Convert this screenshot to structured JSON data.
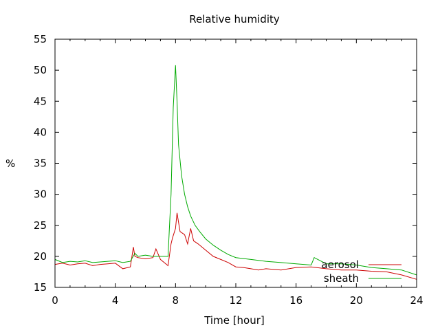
{
  "chart_data": {
    "type": "line",
    "title": "Relative humidity",
    "xlabel": "Time [hour]",
    "ylabel": "%",
    "xlim": [
      0,
      24
    ],
    "ylim": [
      15,
      55
    ],
    "xticks": [
      0,
      4,
      8,
      12,
      16,
      20,
      24
    ],
    "yticks": [
      15,
      20,
      25,
      30,
      35,
      40,
      45,
      50,
      55
    ],
    "grid": false,
    "legend_position": "bottom-right",
    "series": [
      {
        "name": "aerosol",
        "color": "#cc0000",
        "x": [
          0,
          0.5,
          1,
          1.5,
          2,
          2.5,
          3,
          3.5,
          4,
          4.5,
          5,
          5.2,
          5.3,
          5.5,
          6,
          6.5,
          6.7,
          7,
          7.5,
          7.7,
          7.8,
          8,
          8.1,
          8.3,
          8.6,
          8.8,
          9,
          9.2,
          9.5,
          10,
          10.5,
          11,
          11.5,
          12,
          12.5,
          13,
          13.5,
          14,
          15,
          16,
          17,
          18,
          19,
          20,
          21,
          22,
          23,
          24
        ],
        "y": [
          18.7,
          18.9,
          18.6,
          18.8,
          18.9,
          18.5,
          18.7,
          18.8,
          18.9,
          18.0,
          18.3,
          21.5,
          20.0,
          19.8,
          19.6,
          19.8,
          21.2,
          19.5,
          18.5,
          22.0,
          23.0,
          24.5,
          27.0,
          24.0,
          23.5,
          22.0,
          24.5,
          22.5,
          22.0,
          21.0,
          20.0,
          19.5,
          19.0,
          18.3,
          18.2,
          18.0,
          17.8,
          18.0,
          17.8,
          18.2,
          18.3,
          18.0,
          17.8,
          17.8,
          17.6,
          17.5,
          17.0,
          16.3
        ]
      },
      {
        "name": "sheath",
        "color": "#00aa00",
        "x": [
          0,
          0.5,
          1,
          1.5,
          2,
          2.5,
          3,
          3.5,
          4,
          4.5,
          5,
          5.3,
          5.5,
          6,
          6.5,
          7,
          7.5,
          7.7,
          7.85,
          8.0,
          8.1,
          8.2,
          8.4,
          8.6,
          8.8,
          9.0,
          9.3,
          9.6,
          10,
          10.5,
          11,
          11.5,
          12,
          13,
          14,
          15,
          16,
          17,
          17.2,
          18,
          19,
          20,
          21,
          22,
          23,
          24
        ],
        "y": [
          19.5,
          19.0,
          19.2,
          19.1,
          19.3,
          19.0,
          19.1,
          19.2,
          19.3,
          19.0,
          19.2,
          20.5,
          20.0,
          20.2,
          20.0,
          20.0,
          20.0,
          30.0,
          44.0,
          50.8,
          45.0,
          38.0,
          33.0,
          30.0,
          28.0,
          26.5,
          25.0,
          24.0,
          22.8,
          21.8,
          21.0,
          20.3,
          19.8,
          19.5,
          19.2,
          19.0,
          18.8,
          18.6,
          19.8,
          18.8,
          18.8,
          18.6,
          18.2,
          18.0,
          17.8,
          17.0
        ]
      }
    ]
  }
}
